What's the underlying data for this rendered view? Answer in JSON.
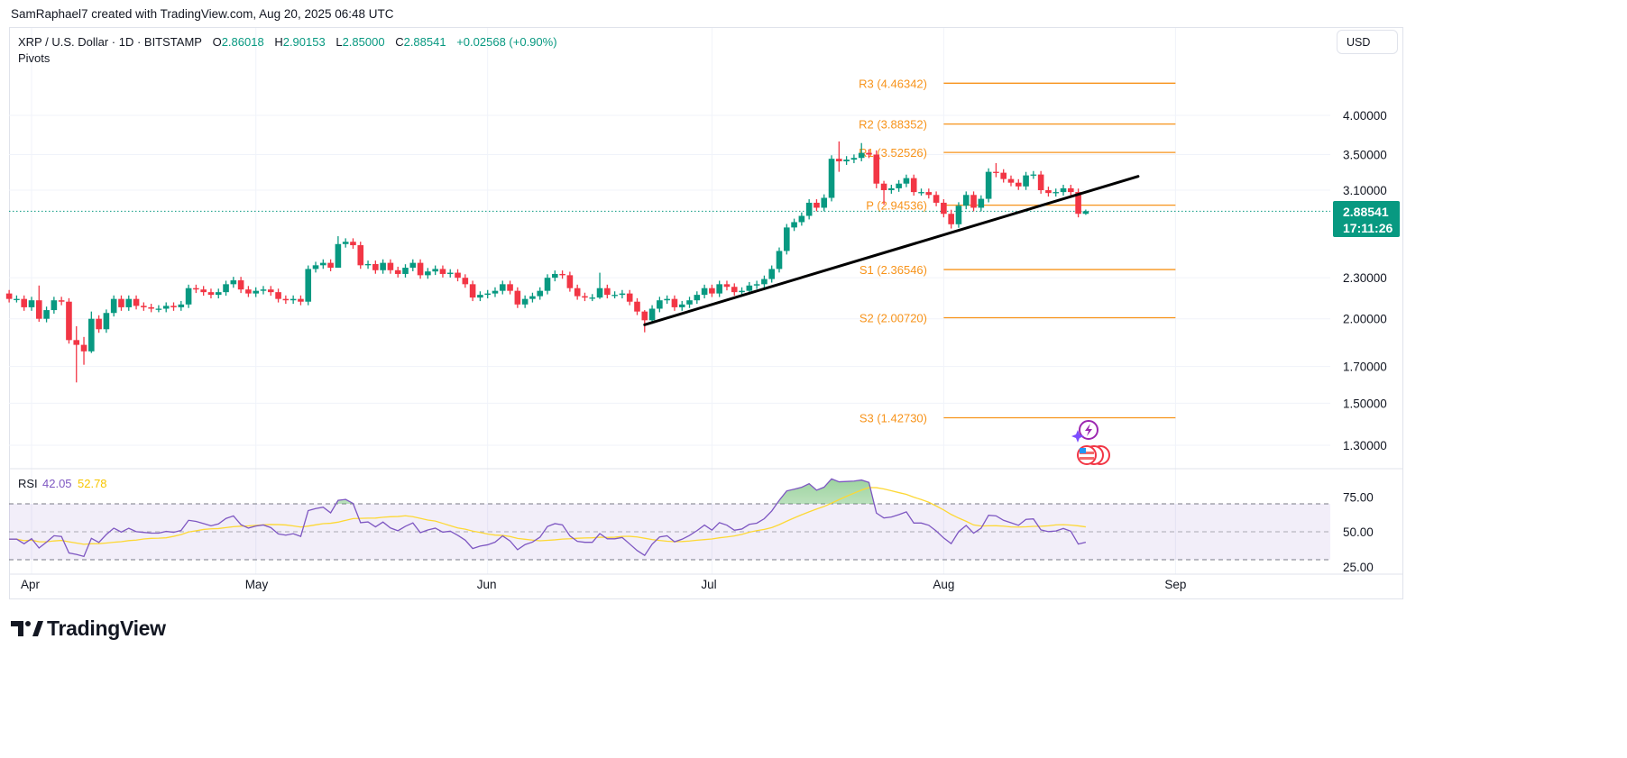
{
  "attribution": "SamRaphael7 created with TradingView.com, Aug 20, 2025 06:48 UTC",
  "legend": {
    "symbol": "XRP / U.S. Dollar · 1D · BITSTAMP",
    "o_label": "O",
    "o": "2.86018",
    "h_label": "H",
    "h": "2.90153",
    "l_label": "L",
    "l": "2.85000",
    "c_label": "C",
    "c": "2.88541",
    "change": "+0.02568 (+0.90%)",
    "indicator": "Pivots"
  },
  "currency_button": "USD",
  "price_badge": {
    "price": "2.88541",
    "countdown": "17:11:26"
  },
  "rsi_legend": {
    "label": "RSI",
    "rsi": "42.05",
    "ma": "52.78"
  },
  "brand": "TradingView",
  "colors": {
    "up": "#089981",
    "down": "#f23645",
    "pivot": "#f7931a",
    "rsi": "#7e57c2",
    "rsi_ma": "#fdd835",
    "trendline": "#000000"
  },
  "icons": [
    "lightning-event-icon",
    "us-flag-event-icon"
  ],
  "chart_data": [
    {
      "type": "candlestick",
      "scale": "log",
      "grid": true,
      "start_date": "2025-03-29",
      "end_date": "2025-08-20",
      "y_ticks": [
        "4.00000",
        "3.50000",
        "3.10000",
        "2.30000",
        "2.00000",
        "1.70000",
        "1.50000",
        "1.30000"
      ],
      "x_ticks": [
        "Apr",
        "May",
        "Jun",
        "Jul",
        "Aug",
        "Sep"
      ],
      "first_open": 2.18,
      "closes": [
        2.14,
        2.14,
        2.08,
        2.13,
        2.0,
        2.06,
        2.13,
        2.12,
        1.86,
        1.83,
        1.79,
        2.0,
        1.93,
        2.04,
        2.14,
        2.08,
        2.14,
        2.09,
        2.08,
        2.07,
        2.07,
        2.09,
        2.08,
        2.1,
        2.22,
        2.21,
        2.19,
        2.17,
        2.19,
        2.25,
        2.28,
        2.21,
        2.18,
        2.2,
        2.21,
        2.19,
        2.14,
        2.13,
        2.14,
        2.12,
        2.37,
        2.4,
        2.42,
        2.38,
        2.58,
        2.6,
        2.57,
        2.4,
        2.41,
        2.36,
        2.42,
        2.36,
        2.33,
        2.38,
        2.42,
        2.32,
        2.35,
        2.37,
        2.33,
        2.34,
        2.3,
        2.25,
        2.15,
        2.17,
        2.18,
        2.2,
        2.25,
        2.2,
        2.1,
        2.14,
        2.16,
        2.2,
        2.3,
        2.33,
        2.32,
        2.22,
        2.16,
        2.15,
        2.15,
        2.22,
        2.17,
        2.17,
        2.18,
        2.12,
        2.05,
        1.99,
        2.07,
        2.13,
        2.14,
        2.08,
        2.1,
        2.13,
        2.17,
        2.22,
        2.18,
        2.25,
        2.23,
        2.19,
        2.2,
        2.24,
        2.25,
        2.29,
        2.37,
        2.52,
        2.73,
        2.78,
        2.84,
        2.97,
        2.92,
        3.02,
        3.45,
        3.42,
        3.44,
        3.46,
        3.52,
        3.5,
        3.17,
        3.1,
        3.12,
        3.17,
        3.23,
        3.08,
        3.08,
        3.05,
        2.97,
        2.86,
        2.76,
        2.94,
        3.05,
        2.92,
        3.01,
        3.3,
        3.29,
        3.22,
        3.18,
        3.14,
        3.26,
        3.27,
        3.1,
        3.07,
        3.08,
        3.12,
        3.08,
        2.86,
        2.88541
      ],
      "wicks": {
        "2025-04-02": [
          2.24,
          1.98
        ],
        "2025-04-07": [
          1.95,
          1.61
        ],
        "2025-04-08": [
          1.88,
          1.71
        ],
        "2025-04-09": [
          2.05,
          1.78
        ],
        "2025-05-12": [
          2.65,
          2.38
        ],
        "2025-06-16": [
          2.34,
          2.14
        ],
        "2025-06-22": [
          2.06,
          1.91
        ],
        "2025-07-18": [
          3.66,
          3.3
        ],
        "2025-07-21": [
          3.64,
          3.42
        ],
        "2025-07-23": [
          3.55,
          3.12
        ],
        "2025-07-24": [
          3.2,
          2.95
        ],
        "2025-08-02": [
          2.9,
          2.72
        ],
        "2025-08-08": [
          3.4,
          3.24
        ],
        "2025-08-20": [
          2.90153,
          2.85
        ]
      },
      "current_price": 2.88541,
      "pivots": [
        {
          "label": "R3 (4.46342)",
          "value": 4.46342
        },
        {
          "label": "R2 (3.88352)",
          "value": 3.88352
        },
        {
          "label": "R1 (3.52526)",
          "value": 3.52526
        },
        {
          "label": "P (2.94536)",
          "value": 2.94536
        },
        {
          "label": "S1 (2.36546)",
          "value": 2.36546
        },
        {
          "label": "S2 (2.00720)",
          "value": 2.0072
        },
        {
          "label": "S3 (1.42730)",
          "value": 1.4273
        }
      ],
      "pivot_period": [
        "2025-08-01",
        "2025-09-01"
      ],
      "trendline": [
        {
          "date": "2025-06-22",
          "price": 1.96
        },
        {
          "date": "2025-08-31",
          "price": 3.35
        }
      ]
    },
    {
      "type": "line",
      "title": "RSI",
      "y_ticks": [
        "75.00",
        "50.00",
        "25.00"
      ],
      "levels": [
        70,
        50,
        30
      ],
      "last_rsi": 42.05,
      "last_ma": 52.78,
      "period": 14
    }
  ]
}
